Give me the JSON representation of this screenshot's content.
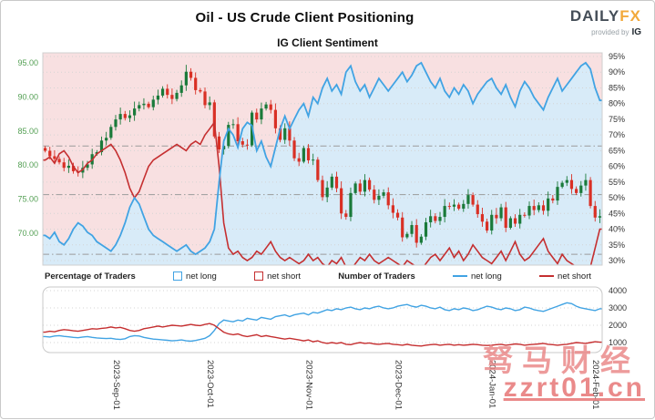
{
  "header": {
    "title": "Oil - US Crude Client Positioning",
    "subtitle": "IG Client Sentiment"
  },
  "logo": {
    "daily": "DAILY",
    "fx": "FX",
    "provided_by": "provided by",
    "ig": "IG"
  },
  "legend": {
    "pct_title": "Percentage of Traders",
    "pct_net_long": "net long",
    "pct_net_short": "net short",
    "num_title": "Number of Traders",
    "num_net_long": "net long",
    "num_net_short": "net short"
  },
  "watermark": {
    "line1": "驽马财经",
    "line2": "zzrt01.cn"
  },
  "colors": {
    "net_long": "#41a3e3",
    "net_short": "#c52f30",
    "candle_up": "#1a7a3a",
    "candle_down": "#d93025",
    "fill_long": "#d8ebf8",
    "fill_short": "#f8e0e1",
    "price_axis": "#55a055",
    "pct_axis": "#333333",
    "accent_fx": "#f2a93b",
    "watermark": "#e88080"
  },
  "chart_data": [
    {
      "type": "candlestick",
      "title": "Oil - US Crude price with IG client sentiment percentage",
      "price_tick_labels": [
        "95.00",
        "90.00",
        "85.00",
        "80.00",
        "75.00",
        "70.00"
      ],
      "price_tick_values": [
        95,
        90,
        85,
        80,
        75,
        70
      ],
      "pct_tick_values": [
        95,
        90,
        85,
        80,
        75,
        70,
        65,
        60,
        55,
        50,
        45,
        40,
        35,
        30
      ],
      "ref_lines_pct": [
        66.5,
        51,
        32
      ],
      "x_tick_indices": [
        14,
        34,
        55,
        74,
        94,
        116
      ],
      "x_tick_labels": [
        "2023-Sep-01",
        "2023-Oct-01",
        "2023-Nov-01",
        "2023-Dec-01",
        "2024-Jan-01",
        "2024-Feb-01"
      ],
      "closes": [
        82.1,
        81.3,
        80.9,
        80.4,
        79.6,
        79.9,
        79.1,
        78.9,
        79.6,
        80.1,
        81.6,
        81.9,
        83.6,
        84.0,
        85.6,
        86.7,
        87.5,
        86.9,
        87.3,
        88.3,
        88.8,
        89.0,
        88.5,
        89.6,
        90.2,
        91.2,
        90.3,
        89.7,
        90.6,
        91.7,
        93.7,
        92.8,
        91.0,
        90.8,
        88.8,
        89.2,
        84.2,
        82.3,
        82.8,
        85.9,
        86.0,
        83.5,
        83.0,
        82.9,
        87.7,
        86.7,
        88.3,
        88.9,
        88.1,
        85.4,
        83.7,
        85.4,
        83.6,
        81.0,
        80.5,
        82.5,
        80.7,
        80.8,
        77.8,
        75.3,
        76.7,
        78.3,
        76.6,
        72.9,
        72.4,
        75.9,
        77.3,
        76.1,
        77.8,
        76.4,
        74.9,
        75.5,
        76.0,
        74.1,
        73.0,
        72.3,
        69.4,
        69.9,
        71.2,
        68.6,
        69.5,
        71.6,
        72.5,
        71.8,
        72.4,
        74.0,
        73.9,
        74.2,
        73.6,
        74.3,
        75.6,
        74.2,
        72.8,
        71.7,
        70.4,
        72.7,
        72.2,
        73.8,
        70.8,
        72.2,
        71.4,
        72.7,
        72.6,
        74.0,
        73.4,
        74.1,
        73.3,
        75.1,
        74.8,
        76.8,
        77.4,
        77.8,
        76.5,
        75.9,
        77.0,
        77.8,
        74.0,
        72.3,
        72.5
      ],
      "net_long_pct": [
        38,
        37,
        39,
        36,
        35,
        37,
        40,
        42,
        41,
        39,
        38,
        36,
        35,
        34,
        33,
        35,
        38,
        42,
        47,
        50,
        48,
        44,
        40,
        38,
        37,
        36,
        35,
        34,
        33,
        34,
        35,
        33,
        32,
        33,
        34,
        36,
        40,
        55,
        68,
        72,
        70,
        66,
        72,
        74,
        73,
        65,
        68,
        63,
        60,
        66,
        72,
        76,
        72,
        75,
        78,
        80,
        76,
        82,
        80,
        85,
        88,
        84,
        86,
        83,
        90,
        92,
        87,
        84,
        86,
        82,
        85,
        88,
        86,
        84,
        86,
        88,
        90,
        87,
        89,
        92,
        93,
        90,
        87,
        85,
        88,
        84,
        82,
        85,
        83,
        86,
        84,
        80,
        83,
        85,
        87,
        88,
        85,
        83,
        86,
        82,
        79,
        84,
        87,
        85,
        82,
        80,
        78,
        82,
        85,
        88,
        84,
        86,
        88,
        90,
        92,
        93,
        91,
        85,
        81
      ],
      "net_short_pct": [
        62,
        63,
        61,
        64,
        65,
        63,
        60,
        58,
        59,
        61,
        62,
        64,
        65,
        66,
        67,
        65,
        62,
        58,
        53,
        50,
        52,
        56,
        60,
        62,
        63,
        64,
        65,
        66,
        67,
        66,
        65,
        67,
        68,
        67,
        70,
        72,
        74,
        60,
        42,
        34,
        32,
        33,
        31,
        30,
        31,
        33,
        32,
        34,
        36,
        33,
        31,
        30,
        31,
        30,
        29,
        30,
        32,
        30,
        31,
        29,
        28,
        30,
        29,
        31,
        28,
        27,
        29,
        31,
        30,
        32,
        30,
        29,
        30,
        31,
        30,
        29,
        28,
        30,
        29,
        28,
        27,
        29,
        31,
        32,
        30,
        32,
        34,
        31,
        33,
        30,
        32,
        35,
        33,
        31,
        30,
        29,
        31,
        33,
        30,
        33,
        36,
        32,
        30,
        31,
        33,
        35,
        37,
        33,
        31,
        29,
        32,
        30,
        29,
        28,
        27,
        26,
        28,
        34,
        40
      ]
    },
    {
      "type": "line",
      "title": "Number of Traders",
      "y_tick_values": [
        4000,
        3000,
        2000,
        1000
      ],
      "series": [
        {
          "name": "net long",
          "values": [
            1350,
            1320,
            1380,
            1400,
            1360,
            1330,
            1300,
            1280,
            1320,
            1350,
            1300,
            1270,
            1250,
            1230,
            1250,
            1200,
            1180,
            1220,
            1350,
            1400,
            1380,
            1300,
            1250,
            1200,
            1180,
            1150,
            1130,
            1100,
            1120,
            1150,
            1100,
            1080,
            1120,
            1180,
            1250,
            1400,
            1700,
            2100,
            2300,
            2250,
            2200,
            2300,
            2250,
            2400,
            2350,
            2300,
            2450,
            2400,
            2350,
            2500,
            2550,
            2600,
            2500,
            2600,
            2650,
            2700,
            2600,
            2750,
            2700,
            2800,
            2900,
            2850,
            2950,
            2900,
            3000,
            3050,
            2950,
            2900,
            3000,
            2950,
            3050,
            3100,
            3000,
            2950,
            3000,
            3100,
            3150,
            3200,
            3100,
            3050,
            3150,
            3100,
            3000,
            2950,
            3050,
            2900,
            2850,
            2950,
            2900,
            3000,
            2950,
            2850,
            2900,
            3000,
            3100,
            3050,
            2950,
            2900,
            3000,
            2950,
            2850,
            2900,
            3050,
            3000,
            2900,
            2850,
            2800,
            2900,
            3000,
            3100,
            3200,
            3300,
            3250,
            3100,
            3000,
            2950,
            2900,
            2850,
            2950
          ]
        },
        {
          "name": "net short",
          "values": [
            1600,
            1650,
            1620,
            1700,
            1750,
            1720,
            1680,
            1650,
            1700,
            1750,
            1800,
            1780,
            1820,
            1850,
            1900,
            1850,
            1880,
            1800,
            1700,
            1650,
            1700,
            1800,
            1850,
            1900,
            1950,
            1900,
            1950,
            2000,
            1980,
            1950,
            2000,
            2050,
            2000,
            1980,
            2050,
            2100,
            2000,
            1800,
            1600,
            1500,
            1450,
            1500,
            1400,
            1350,
            1400,
            1450,
            1350,
            1400,
            1350,
            1300,
            1250,
            1200,
            1250,
            1200,
            1150,
            1100,
            1150,
            1050,
            1100,
            1000,
            950,
            1000,
            950,
            1000,
            900,
            880,
            950,
            1000,
            950,
            980,
            920,
            900,
            930,
            950,
            900,
            880,
            850,
            900,
            850,
            820,
            800,
            850,
            880,
            900,
            850,
            880,
            900,
            850,
            880,
            850,
            870,
            900,
            880,
            850,
            830,
            850,
            880,
            900,
            850,
            880,
            920,
            900,
            850,
            880,
            900,
            920,
            950,
            900,
            880,
            850,
            880,
            900,
            950,
            1000,
            980,
            950,
            1000,
            1050,
            1020
          ]
        }
      ]
    }
  ]
}
